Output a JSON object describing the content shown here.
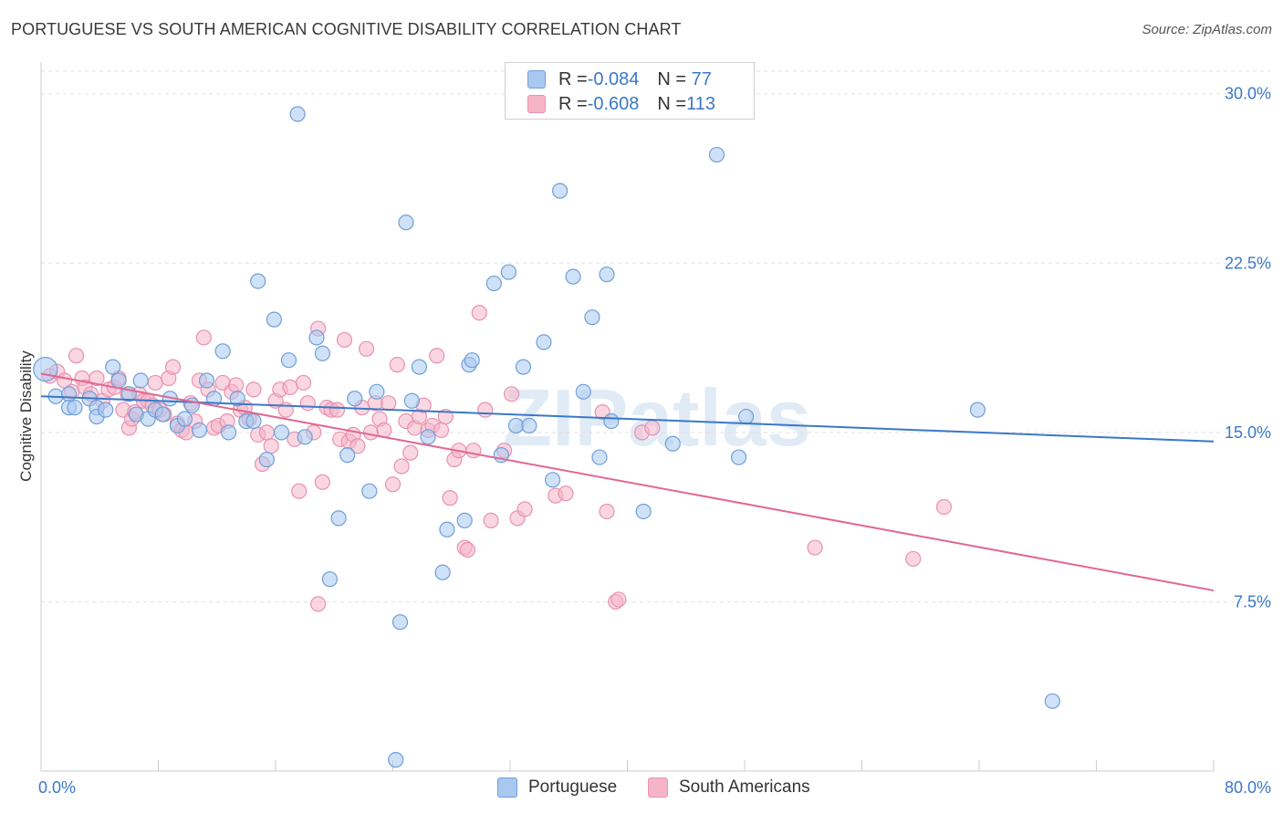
{
  "title": "PORTUGUESE VS SOUTH AMERICAN COGNITIVE DISABILITY CORRELATION CHART",
  "source": "Source: ZipAtlas.com",
  "watermark": "ZIPatlas",
  "colors": {
    "blue_fill": "#a8c8f0",
    "blue_stroke": "#6f9fd8",
    "blue_line": "#3a78c8",
    "pink_fill": "#f6b4c9",
    "pink_stroke": "#e892b0",
    "pink_line": "#e06892",
    "axis_label": "#3a78c8",
    "grid": "#e0e0e0"
  },
  "legend": {
    "rows": [
      {
        "r_label": "R = ",
        "r_value": "-0.084",
        "n_label": "N = ",
        "n_value": " 77"
      },
      {
        "r_label": "R = ",
        "r_value": "-0.608",
        "n_label": "N = ",
        "n_value": "113"
      }
    ]
  },
  "chart_data": {
    "type": "scatter",
    "title": "PORTUGUESE VS SOUTH AMERICAN COGNITIVE DISABILITY CORRELATION CHART",
    "xlabel": "",
    "ylabel": "Cognitive Disability",
    "xlim": [
      0,
      80
    ],
    "ylim": [
      0,
      31
    ],
    "x_tick_labels": [
      "0.0%",
      "80.0%"
    ],
    "y_ticks": [
      7.5,
      15.0,
      22.5,
      30.0
    ],
    "y_tick_labels": [
      "7.5%",
      "15.0%",
      "22.5%",
      "30.0%"
    ],
    "grid": "horizontal dashed",
    "legend_position": "top-center",
    "series": [
      {
        "name": "Portuguese",
        "color": "#a8c8f0",
        "trend": {
          "x": [
            0,
            80
          ],
          "y": [
            16.6,
            14.6
          ]
        },
        "points": [
          [
            0.3,
            17.8
          ],
          [
            1.0,
            16.6
          ],
          [
            1.9,
            16.7
          ],
          [
            1.9,
            16.1
          ],
          [
            2.3,
            16.1
          ],
          [
            3.3,
            16.5
          ],
          [
            3.8,
            16.1
          ],
          [
            3.8,
            15.7
          ],
          [
            4.4,
            16.0
          ],
          [
            4.9,
            17.9
          ],
          [
            5.3,
            17.3
          ],
          [
            6.0,
            16.7
          ],
          [
            6.5,
            15.8
          ],
          [
            6.8,
            17.3
          ],
          [
            7.3,
            15.6
          ],
          [
            7.8,
            16.0
          ],
          [
            8.3,
            15.8
          ],
          [
            8.8,
            16.5
          ],
          [
            9.3,
            15.3
          ],
          [
            9.8,
            15.6
          ],
          [
            10.3,
            16.2
          ],
          [
            10.8,
            15.1
          ],
          [
            11.3,
            17.3
          ],
          [
            11.8,
            16.5
          ],
          [
            12.4,
            18.6
          ],
          [
            12.8,
            15.0
          ],
          [
            13.4,
            16.5
          ],
          [
            14.0,
            15.5
          ],
          [
            14.5,
            15.5
          ],
          [
            14.8,
            21.7
          ],
          [
            15.4,
            13.8
          ],
          [
            15.9,
            20.0
          ],
          [
            16.4,
            15.0
          ],
          [
            16.9,
            18.2
          ],
          [
            17.5,
            29.1
          ],
          [
            18.0,
            14.8
          ],
          [
            18.8,
            19.2
          ],
          [
            19.2,
            18.5
          ],
          [
            19.7,
            8.5
          ],
          [
            20.3,
            11.2
          ],
          [
            20.9,
            14.0
          ],
          [
            21.4,
            16.5
          ],
          [
            22.4,
            12.4
          ],
          [
            22.9,
            16.8
          ],
          [
            24.2,
            0.5
          ],
          [
            24.5,
            6.6
          ],
          [
            24.9,
            24.3
          ],
          [
            25.3,
            16.4
          ],
          [
            25.8,
            17.9
          ],
          [
            26.4,
            14.8
          ],
          [
            27.4,
            8.8
          ],
          [
            27.7,
            10.7
          ],
          [
            28.9,
            11.1
          ],
          [
            29.2,
            18.0
          ],
          [
            29.4,
            18.2
          ],
          [
            30.9,
            21.6
          ],
          [
            31.4,
            14.0
          ],
          [
            31.9,
            22.1
          ],
          [
            32.4,
            15.3
          ],
          [
            32.9,
            17.9
          ],
          [
            33.3,
            15.3
          ],
          [
            34.3,
            19.0
          ],
          [
            34.9,
            12.9
          ],
          [
            35.4,
            25.7
          ],
          [
            36.3,
            21.9
          ],
          [
            37.0,
            16.8
          ],
          [
            37.6,
            20.1
          ],
          [
            38.1,
            13.9
          ],
          [
            38.6,
            22.0
          ],
          [
            38.9,
            15.5
          ],
          [
            41.1,
            11.5
          ],
          [
            43.1,
            14.5
          ],
          [
            46.1,
            27.3
          ],
          [
            47.6,
            13.9
          ],
          [
            48.1,
            15.7
          ],
          [
            63.9,
            16.0
          ],
          [
            69.0,
            3.1
          ]
        ]
      },
      {
        "name": "South Americans",
        "color": "#f6b4c9",
        "trend": {
          "x": [
            0,
            80
          ],
          "y": [
            17.6,
            8.0
          ]
        },
        "points": [
          [
            0.6,
            17.5
          ],
          [
            1.1,
            17.7
          ],
          [
            1.6,
            17.3
          ],
          [
            2.1,
            16.8
          ],
          [
            2.4,
            18.4
          ],
          [
            2.8,
            17.4
          ],
          [
            3.0,
            17.0
          ],
          [
            3.4,
            16.7
          ],
          [
            3.8,
            17.4
          ],
          [
            4.2,
            16.4
          ],
          [
            4.6,
            16.9
          ],
          [
            5.0,
            17.0
          ],
          [
            5.3,
            17.4
          ],
          [
            5.6,
            16.0
          ],
          [
            5.9,
            16.7
          ],
          [
            6.0,
            15.2
          ],
          [
            6.2,
            15.6
          ],
          [
            6.4,
            15.9
          ],
          [
            6.7,
            16.7
          ],
          [
            7.0,
            16.4
          ],
          [
            7.3,
            16.4
          ],
          [
            7.6,
            16.2
          ],
          [
            7.8,
            17.2
          ],
          [
            8.1,
            16.0
          ],
          [
            8.4,
            15.8
          ],
          [
            8.7,
            17.4
          ],
          [
            9.0,
            17.9
          ],
          [
            9.3,
            15.4
          ],
          [
            9.6,
            15.1
          ],
          [
            9.9,
            15.0
          ],
          [
            10.2,
            16.3
          ],
          [
            10.5,
            15.5
          ],
          [
            10.8,
            17.3
          ],
          [
            11.1,
            19.2
          ],
          [
            11.4,
            16.9
          ],
          [
            11.8,
            15.2
          ],
          [
            12.1,
            15.3
          ],
          [
            12.4,
            17.2
          ],
          [
            12.7,
            15.5
          ],
          [
            13.0,
            16.8
          ],
          [
            13.3,
            17.1
          ],
          [
            13.6,
            16.0
          ],
          [
            13.9,
            16.1
          ],
          [
            14.2,
            15.6
          ],
          [
            14.5,
            16.9
          ],
          [
            14.8,
            14.9
          ],
          [
            15.1,
            13.6
          ],
          [
            15.4,
            15.0
          ],
          [
            15.7,
            14.4
          ],
          [
            16.0,
            16.4
          ],
          [
            16.3,
            16.9
          ],
          [
            16.7,
            16.0
          ],
          [
            17.0,
            17.0
          ],
          [
            17.3,
            14.7
          ],
          [
            17.6,
            12.4
          ],
          [
            17.9,
            17.2
          ],
          [
            18.2,
            16.3
          ],
          [
            18.6,
            15.0
          ],
          [
            18.9,
            19.6
          ],
          [
            18.9,
            7.4
          ],
          [
            19.2,
            12.8
          ],
          [
            19.5,
            16.1
          ],
          [
            19.8,
            16.0
          ],
          [
            20.2,
            16.0
          ],
          [
            20.4,
            14.7
          ],
          [
            20.7,
            19.1
          ],
          [
            21.0,
            14.6
          ],
          [
            21.3,
            14.9
          ],
          [
            21.6,
            14.4
          ],
          [
            21.9,
            16.1
          ],
          [
            22.2,
            18.7
          ],
          [
            22.5,
            15.0
          ],
          [
            22.8,
            16.3
          ],
          [
            23.1,
            15.6
          ],
          [
            23.4,
            15.1
          ],
          [
            23.7,
            16.3
          ],
          [
            24.0,
            12.7
          ],
          [
            24.3,
            18.0
          ],
          [
            24.6,
            13.5
          ],
          [
            24.9,
            15.5
          ],
          [
            25.2,
            14.1
          ],
          [
            25.5,
            15.2
          ],
          [
            25.8,
            15.7
          ],
          [
            26.1,
            16.2
          ],
          [
            26.4,
            15.1
          ],
          [
            26.7,
            15.3
          ],
          [
            27.0,
            18.4
          ],
          [
            27.3,
            15.1
          ],
          [
            27.6,
            15.7
          ],
          [
            27.9,
            12.1
          ],
          [
            28.2,
            13.8
          ],
          [
            28.5,
            14.2
          ],
          [
            28.9,
            9.9
          ],
          [
            29.1,
            9.8
          ],
          [
            29.5,
            14.2
          ],
          [
            29.9,
            20.3
          ],
          [
            30.3,
            16.0
          ],
          [
            30.7,
            11.1
          ],
          [
            31.6,
            14.2
          ],
          [
            32.1,
            16.7
          ],
          [
            32.5,
            11.2
          ],
          [
            33.0,
            11.6
          ],
          [
            35.1,
            12.2
          ],
          [
            35.8,
            12.3
          ],
          [
            38.3,
            15.9
          ],
          [
            38.6,
            11.5
          ],
          [
            39.2,
            7.5
          ],
          [
            39.4,
            7.6
          ],
          [
            41.0,
            15.0
          ],
          [
            41.7,
            15.2
          ],
          [
            52.8,
            9.9
          ],
          [
            59.5,
            9.4
          ],
          [
            61.6,
            11.7
          ]
        ]
      }
    ]
  }
}
